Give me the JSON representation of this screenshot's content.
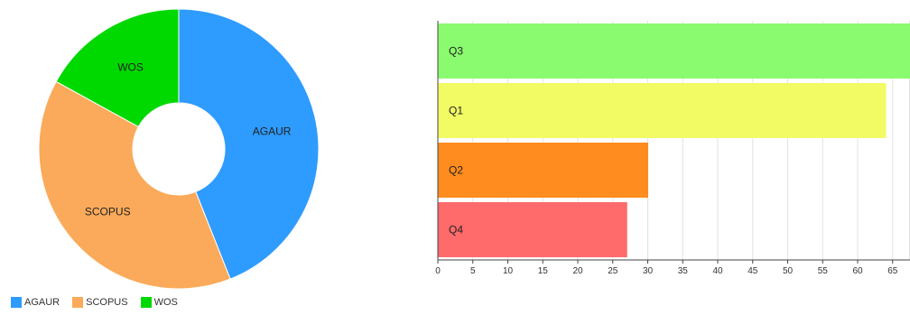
{
  "chart_data": [
    {
      "type": "pie",
      "variant": "donut",
      "slices": [
        {
          "label": "AGAUR",
          "value": 44,
          "color": "#2E9BFF"
        },
        {
          "label": "SCOPUS",
          "value": 39,
          "color": "#FAAA5A"
        },
        {
          "label": "WOS",
          "value": 17,
          "color": "#00D900"
        }
      ],
      "legend": {
        "placement": "bottom-left",
        "items": [
          {
            "label": "AGAUR",
            "color": "#2E9BFF"
          },
          {
            "label": "SCOPUS",
            "color": "#FAAA5A"
          },
          {
            "label": "WOS",
            "color": "#00D900"
          }
        ]
      }
    },
    {
      "type": "bar",
      "orientation": "horizontal",
      "categories": [
        "Q3",
        "Q1",
        "Q2",
        "Q4"
      ],
      "values": [
        70,
        64,
        30,
        27
      ],
      "colors": [
        "#8AFA6E",
        "#F2FA64",
        "#FF8C1E",
        "#FF6A6A"
      ],
      "xlim": [
        0,
        68
      ],
      "xticks": [
        0,
        5,
        10,
        15,
        20,
        25,
        30,
        35,
        40,
        45,
        50,
        55,
        60,
        65
      ],
      "grid": true
    }
  ]
}
